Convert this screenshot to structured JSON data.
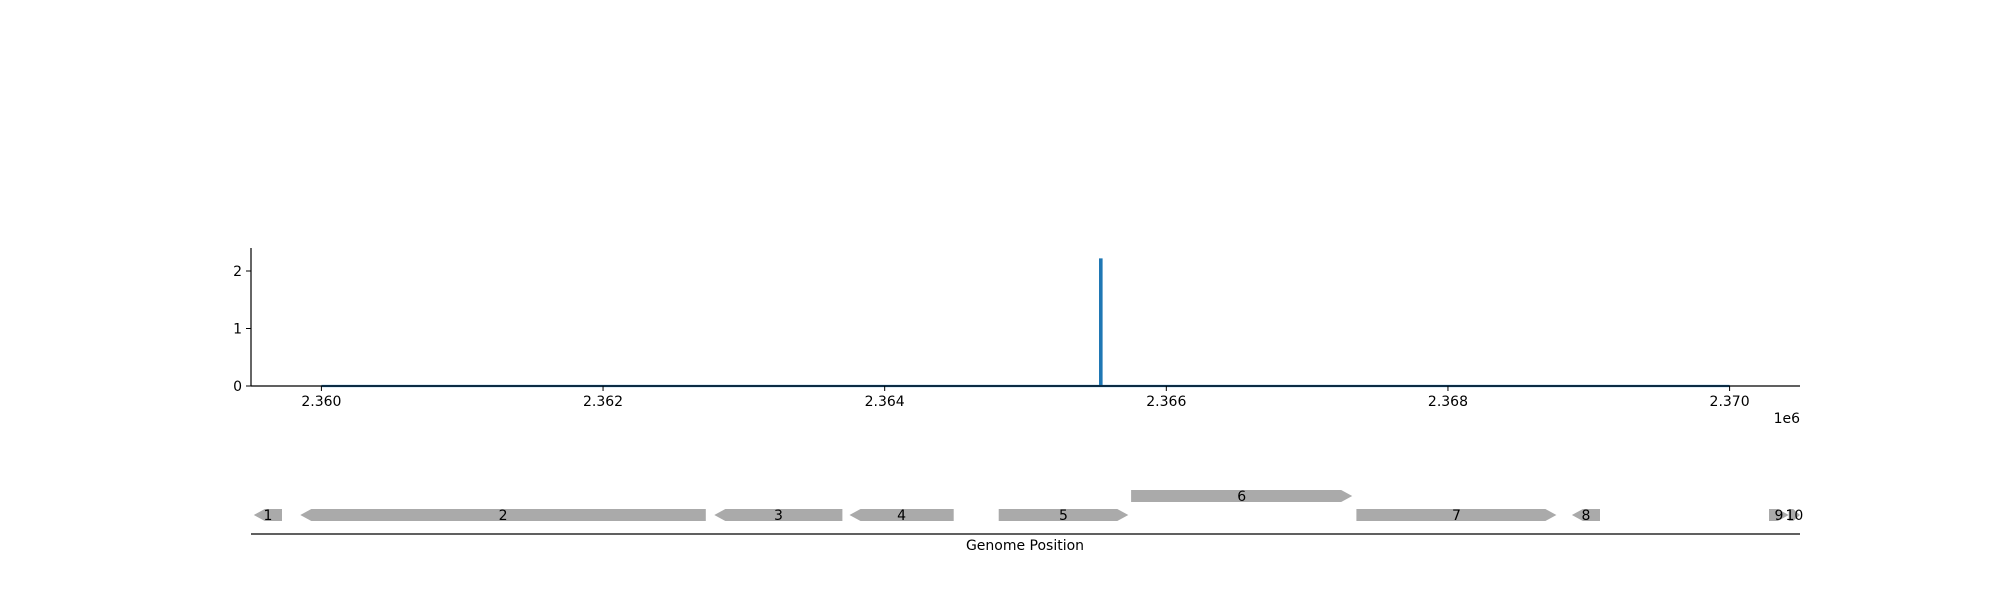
{
  "chart_data": [
    {
      "type": "line",
      "title": "",
      "xlabel": "",
      "ylabel": "",
      "x_offset_label": "1e6",
      "xlim": [
        2359500,
        2370500
      ],
      "ylim": [
        0,
        2.4
      ],
      "x_ticks": [
        2360000,
        2362000,
        2364000,
        2366000,
        2368000,
        2370000
      ],
      "x_tick_labels": [
        "2.360",
        "2.362",
        "2.364",
        "2.366",
        "2.368",
        "2.370"
      ],
      "y_ticks": [
        0,
        1,
        2
      ],
      "y_tick_labels": [
        "0",
        "1",
        "2"
      ],
      "grid": false,
      "series": [
        {
          "color": "#1f77b4",
          "x": [
            2360000,
            2365530,
            2365530,
            2365540,
            2365540,
            2370000
          ],
          "y": [
            0,
            0,
            2.2,
            2.2,
            0,
            0
          ]
        }
      ]
    },
    {
      "type": "gene-track",
      "xlabel": "Genome Position",
      "xlim": [
        2359500,
        2370500
      ],
      "feature_color": "#aaaaaa",
      "features": [
        {
          "label": "1",
          "start": 2359520,
          "end": 2359720,
          "strand": -1,
          "row": 0
        },
        {
          "label": "2",
          "start": 2359850,
          "end": 2362730,
          "strand": -1,
          "row": 0
        },
        {
          "label": "3",
          "start": 2362790,
          "end": 2363700,
          "strand": -1,
          "row": 0
        },
        {
          "label": "4",
          "start": 2363750,
          "end": 2364490,
          "strand": -1,
          "row": 0
        },
        {
          "label": "5",
          "start": 2364810,
          "end": 2365730,
          "strand": 1,
          "row": 0
        },
        {
          "label": "6",
          "start": 2365750,
          "end": 2367320,
          "strand": 1,
          "row": 1
        },
        {
          "label": "7",
          "start": 2367350,
          "end": 2368770,
          "strand": 1,
          "row": 0
        },
        {
          "label": "8",
          "start": 2368880,
          "end": 2369080,
          "strand": -1,
          "row": 0
        },
        {
          "label": "9",
          "start": 2370280,
          "end": 2370420,
          "strand": 1,
          "row": 0
        },
        {
          "label": "10",
          "start": 2370420,
          "end": 2370500,
          "strand": 1,
          "row": 0
        }
      ]
    }
  ]
}
